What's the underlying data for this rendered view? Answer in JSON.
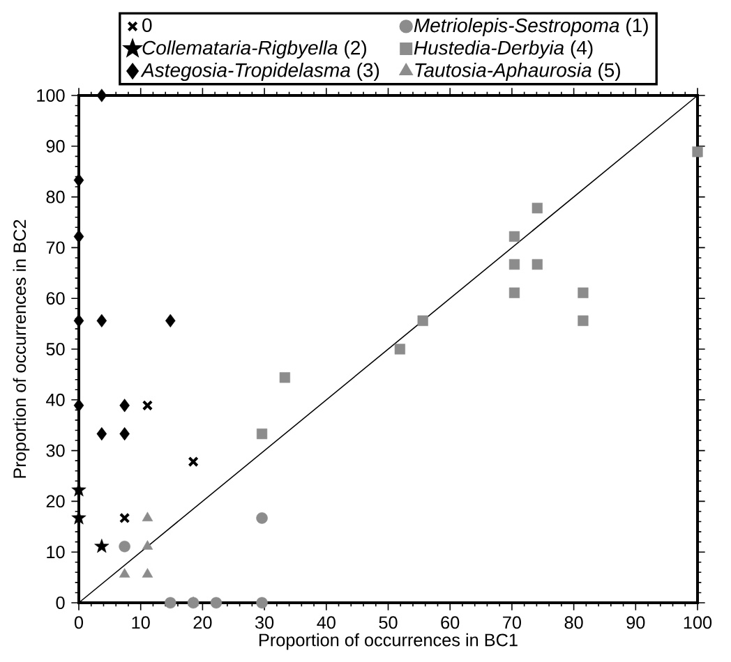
{
  "chart_data": {
    "type": "scatter",
    "xlabel": "Proportion of occurrences in BC1",
    "ylabel": "Proportion of occurrences in BC2",
    "xlim": [
      0,
      100
    ],
    "ylim": [
      0,
      100
    ],
    "xticks": [
      0,
      10,
      20,
      30,
      40,
      50,
      60,
      70,
      80,
      90,
      100
    ],
    "yticks": [
      0,
      10,
      20,
      30,
      40,
      50,
      60,
      70,
      80,
      90,
      100
    ],
    "grid": false,
    "legend": "top",
    "series": [
      {
        "name": "0",
        "color": "#000000",
        "marker": "cross",
        "x": [
          11.1,
          18.5,
          7.4
        ],
        "values": [
          38.9,
          27.8,
          16.7
        ]
      },
      {
        "name": "*Metriolepis-Sestropoma* (1)",
        "color": "#8c8c8c",
        "marker": "circle",
        "x": [
          7.4,
          29.6,
          14.8,
          18.5,
          22.2,
          29.6
        ],
        "values": [
          11.1,
          16.7,
          0,
          0,
          0,
          0
        ]
      },
      {
        "name": "*Collemataria-Rigbyella* (2)",
        "color": "#000000",
        "marker": "star",
        "x": [
          0,
          0,
          3.7
        ],
        "values": [
          22.2,
          16.7,
          11.1
        ]
      },
      {
        "name": "*Hustedia-Derbyia* (4)",
        "color": "#8c8c8c",
        "marker": "square",
        "x": [
          29.6,
          33.3,
          51.9,
          55.6,
          70.4,
          70.4,
          70.4,
          74.1,
          74.1,
          81.5,
          81.5,
          100
        ],
        "values": [
          33.3,
          44.4,
          50,
          55.6,
          72.2,
          66.7,
          61.1,
          77.8,
          66.7,
          61.1,
          55.6,
          88.9
        ]
      },
      {
        "name": "*Astegosia-Tropidelasma* (3)",
        "color": "#000000",
        "marker": "diamond",
        "x": [
          3.7,
          0,
          0,
          0,
          3.7,
          14.8,
          0,
          7.4,
          3.7,
          7.4
        ],
        "values": [
          100,
          83.3,
          72.2,
          55.6,
          55.6,
          55.6,
          38.9,
          38.9,
          33.3,
          33.3
        ]
      },
      {
        "name": "*Tautosia-Aphaurosia* (5)",
        "color": "#8c8c8c",
        "marker": "triangle",
        "x": [
          11.1,
          11.1,
          7.4,
          11.1,
          18.5
        ],
        "values": [
          16.7,
          11.1,
          5.6,
          5.6,
          0
        ]
      },
      {
        "type": "line",
        "color": "#000000",
        "x": [
          0,
          100
        ],
        "values": [
          0,
          100
        ]
      }
    ]
  }
}
